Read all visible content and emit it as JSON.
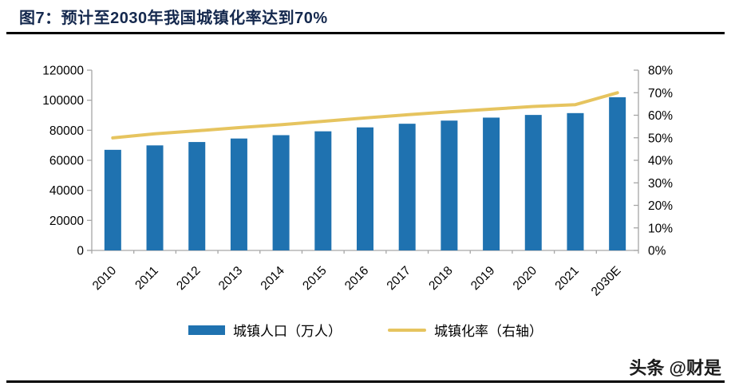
{
  "title": "图7：预计至2030年我国城镇化率达到70%",
  "watermark": "头条 @财是",
  "colors": {
    "bar": "#1F72B0",
    "line": "#E6C45F",
    "title": "#15294E",
    "axis": "#A6A6A6",
    "tick_text": "#000000",
    "rule": "#000000"
  },
  "chart_data": {
    "type": "bar",
    "subtype": "bar-line-combo",
    "title": "图7：预计至2030年我国城镇化率达到70%",
    "categories": [
      "2010",
      "2011",
      "2012",
      "2013",
      "2014",
      "2015",
      "2016",
      "2017",
      "2018",
      "2019",
      "2020",
      "2021",
      "2030E"
    ],
    "series": [
      {
        "name": "城镇人口（万人）",
        "type": "bar",
        "axis": "left",
        "color": "#1F72B0",
        "values": [
          66978,
          69927,
          72175,
          74502,
          76738,
          79302,
          81924,
          84343,
          86433,
          88426,
          90199,
          91425,
          102000
        ]
      },
      {
        "name": "城镇化率（右轴）",
        "type": "line",
        "axis": "right",
        "color": "#E6C45F",
        "values": [
          49.95,
          51.8,
          53.1,
          54.5,
          55.8,
          57.3,
          58.8,
          60.2,
          61.5,
          62.7,
          63.9,
          64.7,
          70.0
        ]
      }
    ],
    "left_axis": {
      "min": 0,
      "max": 120000,
      "step": 20000,
      "tick_labels": [
        "0",
        "20000",
        "40000",
        "60000",
        "80000",
        "100000",
        "120000"
      ]
    },
    "right_axis": {
      "min": 0,
      "max": 80,
      "step": 10,
      "tick_labels": [
        "0%",
        "10%",
        "20%",
        "30%",
        "40%",
        "50%",
        "60%",
        "70%",
        "80%"
      ]
    },
    "grid": false,
    "legend_position": "bottom"
  }
}
